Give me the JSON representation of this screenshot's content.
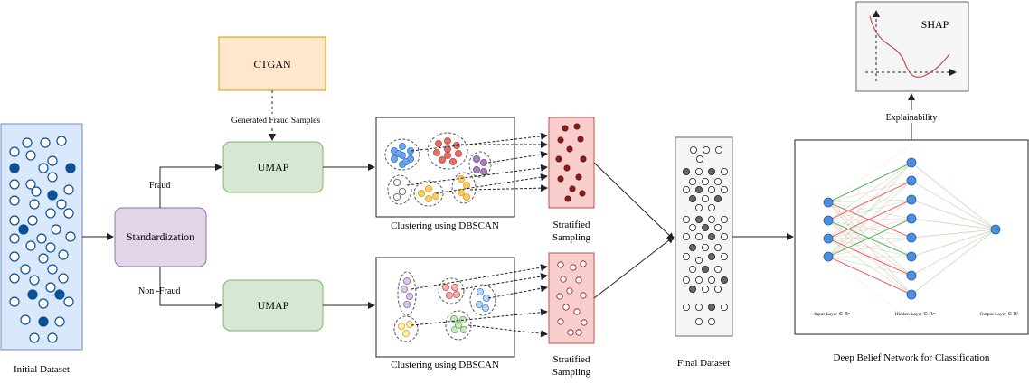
{
  "labels": {
    "initial_dataset": "Initial Dataset",
    "standardization": "Standardization",
    "fraud": "Fraud",
    "non_fraud": "Non -Fraud",
    "ctgan": "CTGAN",
    "generated_fraud_samples": "Generated Fraud Samples",
    "umap": "UMAP",
    "clustering": "Clustering using DBSCAN",
    "stratified_line1": "Stratified",
    "stratified_line2": "Sampling",
    "final_dataset": "Final Dataset",
    "dbn": "Deep Belief Network for Classification",
    "input_layer": "Input Layer ∈ ℝⁿ",
    "hidden_layer": "Hidden Layer ∈ ℝᵐ",
    "output_layer": "Output Layer ∈ ℝ¹",
    "explainability": "Explainability",
    "shap": "SHAP"
  },
  "colors": {
    "dataset_fill": "#dae8fc",
    "dataset_stroke": "#6c8ebf",
    "point_dark": "#0b4f96",
    "standardization_fill": "#e1d5e7",
    "standardization_stroke": "#9673a6",
    "ctgan_fill": "#ffe6cc",
    "ctgan_stroke": "#d79b00",
    "umap_fill": "#d5e8d4",
    "umap_stroke": "#82b366",
    "sampling_fill": "#f8cecc",
    "sampling_stroke": "#b85450",
    "final_fill": "#f5f5f5",
    "shap_fill": "#f5f5f5",
    "neuron_fill": "#4a90e2",
    "shap_curve": "#b85450",
    "cluster_colors": [
      "#6aa8f0",
      "#ea6b66",
      "#a680b8",
      "#ffffff",
      "#ffcc66"
    ],
    "cluster_colors_light": [
      "#d8c8e8",
      "#f4b0b0",
      "#b8d4f8",
      "#fff0b0",
      "#c8e8c0"
    ]
  }
}
